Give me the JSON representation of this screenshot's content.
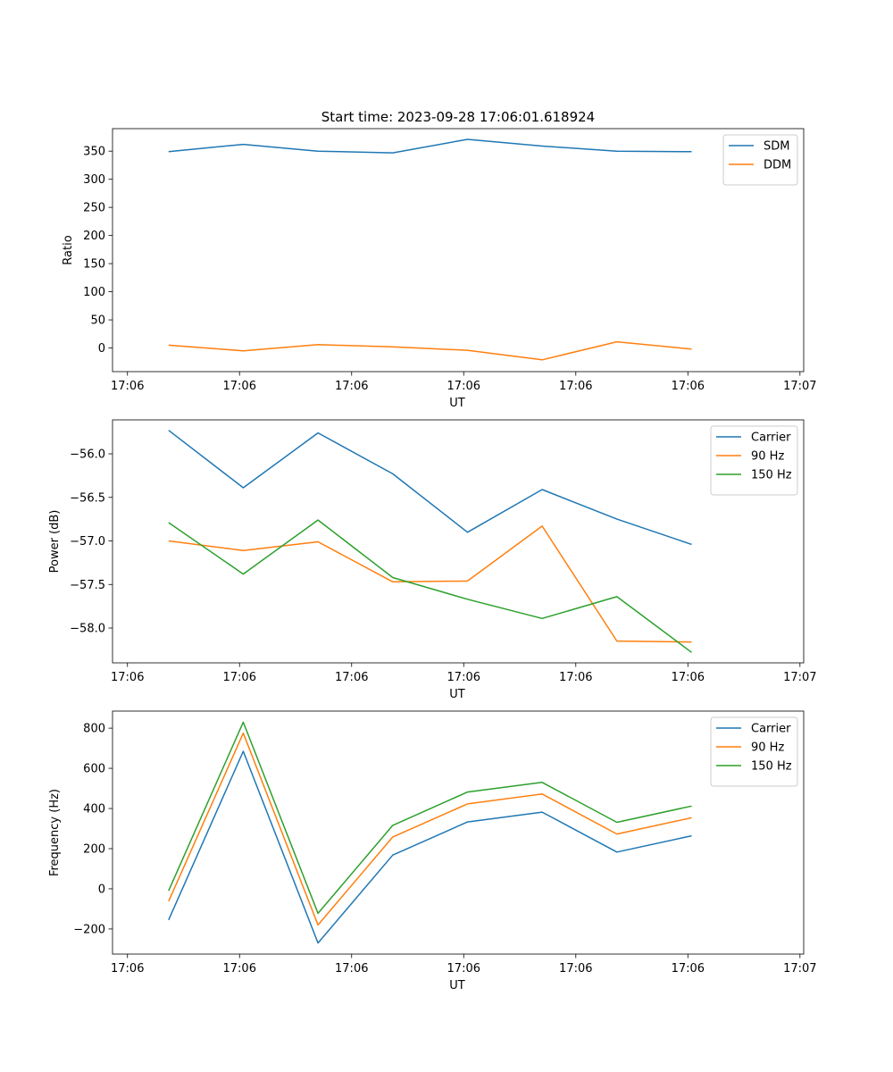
{
  "title": "Start time: 2023-09-28 17:06:01.618924",
  "chart_data": [
    {
      "type": "line",
      "id": "ratio",
      "xlabel": "UT",
      "ylabel": "Ratio",
      "x": [
        0,
        1,
        2,
        3,
        4,
        5,
        6,
        7
      ],
      "xlim": [
        -0.75,
        8.5
      ],
      "xticks": [
        -0.55,
        0.95,
        2.45,
        3.95,
        5.45,
        6.95,
        8.45
      ],
      "xtick_labels": [
        "17:06",
        "17:06",
        "17:06",
        "17:06",
        "17:06",
        "17:06",
        "17:07"
      ],
      "ylim": [
        -42,
        390
      ],
      "yticks": [
        0,
        50,
        100,
        150,
        200,
        250,
        300,
        350
      ],
      "ytick_labels": [
        "0",
        "50",
        "100",
        "150",
        "200",
        "250",
        "300",
        "350"
      ],
      "legend_position": "top-right",
      "series": [
        {
          "name": "SDM",
          "color": "#1f77b4",
          "values": [
            349,
            362,
            350,
            347,
            371,
            359,
            350,
            349
          ]
        },
        {
          "name": "DDM",
          "color": "#ff7f0e",
          "values": [
            5,
            -5,
            6,
            2,
            -4,
            -21,
            11,
            -2
          ]
        }
      ]
    },
    {
      "type": "line",
      "id": "power",
      "xlabel": "UT",
      "ylabel": "Power (dB)",
      "x": [
        0,
        1,
        2,
        3,
        4,
        5,
        6,
        7
      ],
      "xlim": [
        -0.75,
        8.5
      ],
      "xticks": [
        -0.55,
        0.95,
        2.45,
        3.95,
        5.45,
        6.95,
        8.45
      ],
      "xtick_labels": [
        "17:06",
        "17:06",
        "17:06",
        "17:06",
        "17:06",
        "17:06",
        "17:07"
      ],
      "ylim": [
        -58.4,
        -55.61
      ],
      "yticks": [
        -58.0,
        -57.5,
        -57.0,
        -56.5,
        -56.0
      ],
      "ytick_labels": [
        "−58.0",
        "−57.5",
        "−57.0",
        "−56.5",
        "−56.0"
      ],
      "legend_position": "top-right",
      "series": [
        {
          "name": "Carrier",
          "color": "#1f77b4",
          "values": [
            -55.73,
            -56.39,
            -55.76,
            -56.23,
            -56.9,
            -56.41,
            -56.75,
            -57.04
          ]
        },
        {
          "name": "90 Hz",
          "color": "#ff7f0e",
          "values": [
            -57.0,
            -57.11,
            -57.01,
            -57.47,
            -57.46,
            -56.83,
            -58.15,
            -58.16
          ]
        },
        {
          "name": "150 Hz",
          "color": "#2ca02c",
          "values": [
            -56.79,
            -57.38,
            -56.76,
            -57.42,
            -57.67,
            -57.89,
            -57.64,
            -58.28
          ]
        }
      ]
    },
    {
      "type": "line",
      "id": "frequency",
      "xlabel": "UT",
      "ylabel": "Frequency (Hz)",
      "x": [
        0,
        1,
        2,
        3,
        4,
        5,
        6,
        7
      ],
      "xlim": [
        -0.75,
        8.5
      ],
      "xticks": [
        -0.55,
        0.95,
        2.45,
        3.95,
        5.45,
        6.95,
        8.45
      ],
      "xtick_labels": [
        "17:06",
        "17:06",
        "17:06",
        "17:06",
        "17:06",
        "17:06",
        "17:07"
      ],
      "ylim": [
        -325,
        885
      ],
      "yticks": [
        -200,
        0,
        200,
        400,
        600,
        800
      ],
      "ytick_labels": [
        "−200",
        "0",
        "200",
        "400",
        "600",
        "800"
      ],
      "legend_position": "top-right",
      "series": [
        {
          "name": "Carrier",
          "color": "#1f77b4",
          "values": [
            -155,
            685,
            -270,
            168,
            333,
            382,
            183,
            264
          ]
        },
        {
          "name": "90 Hz",
          "color": "#ff7f0e",
          "values": [
            -62,
            775,
            -180,
            258,
            423,
            472,
            273,
            354
          ]
        },
        {
          "name": "150 Hz",
          "color": "#2ca02c",
          "values": [
            -10,
            830,
            -122,
            316,
            482,
            530,
            331,
            412
          ]
        }
      ]
    }
  ]
}
